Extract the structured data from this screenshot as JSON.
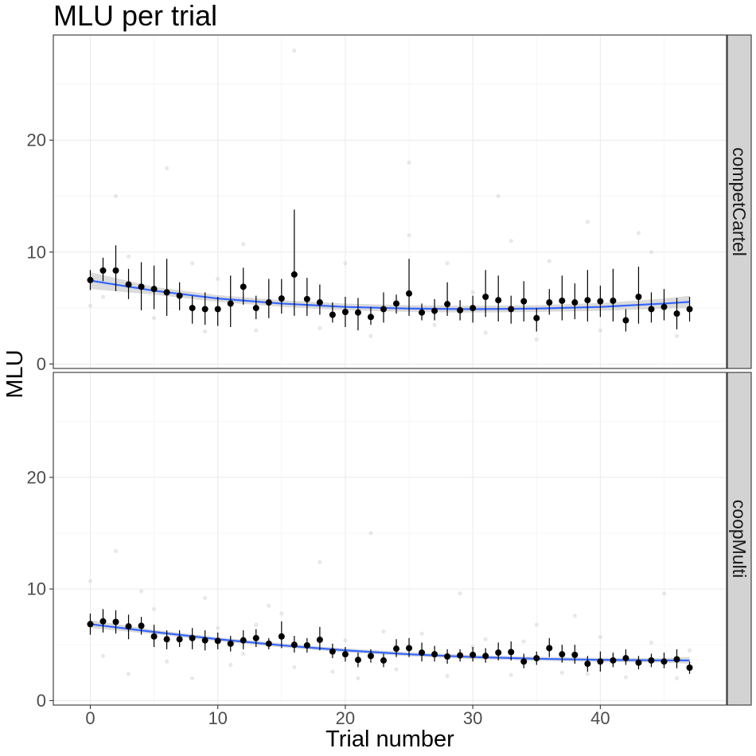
{
  "chart_data": {
    "type": "scatter",
    "title": "MLU per trial",
    "xlabel": "Trial number",
    "ylabel": "MLU",
    "xlim": [
      -2.9,
      49.9
    ],
    "ylim": [
      -0.4,
      29.4
    ],
    "x_ticks": [
      0,
      10,
      20,
      30,
      40
    ],
    "y_ticks": [
      0,
      10,
      20
    ],
    "grid": true,
    "colors": {
      "points": "#000000",
      "smooth_line": "#3366ff",
      "ribbon": "#999999",
      "raw_points": "#cccccc",
      "strip_bg": "#d3d3d3"
    },
    "panels": [
      {
        "strip_label": "competCartel",
        "means": [
          {
            "x": 0,
            "y": 7.5,
            "lo": 6.6,
            "hi": 8.4
          },
          {
            "x": 1,
            "y": 8.35,
            "lo": 7.4,
            "hi": 9.5
          },
          {
            "x": 2,
            "y": 8.35,
            "lo": 6.5,
            "hi": 10.6
          },
          {
            "x": 3,
            "y": 7.1,
            "lo": 5.8,
            "hi": 8.5
          },
          {
            "x": 4,
            "y": 6.9,
            "lo": 4.8,
            "hi": 9.1
          },
          {
            "x": 5,
            "y": 6.7,
            "lo": 4.9,
            "hi": 8.8
          },
          {
            "x": 6,
            "y": 6.4,
            "lo": 4.3,
            "hi": 9.4
          },
          {
            "x": 7,
            "y": 6.1,
            "lo": 4.8,
            "hi": 7.3
          },
          {
            "x": 8,
            "y": 5.0,
            "lo": 3.6,
            "hi": 6.1
          },
          {
            "x": 9,
            "y": 4.9,
            "lo": 3.5,
            "hi": 6.4
          },
          {
            "x": 10,
            "y": 4.9,
            "lo": 3.4,
            "hi": 6.0
          },
          {
            "x": 11,
            "y": 5.4,
            "lo": 3.3,
            "hi": 7.9
          },
          {
            "x": 12,
            "y": 6.9,
            "lo": 5.3,
            "hi": 8.6
          },
          {
            "x": 13,
            "y": 5.0,
            "lo": 4.0,
            "hi": 6.1
          },
          {
            "x": 14,
            "y": 5.5,
            "lo": 4.1,
            "hi": 7.6
          },
          {
            "x": 15,
            "y": 5.85,
            "lo": 4.5,
            "hi": 7.6
          },
          {
            "x": 16,
            "y": 8.0,
            "lo": 4.3,
            "hi": 13.8
          },
          {
            "x": 17,
            "y": 5.8,
            "lo": 4.3,
            "hi": 7.7
          },
          {
            "x": 18,
            "y": 5.5,
            "lo": 4.4,
            "hi": 7.1
          },
          {
            "x": 19,
            "y": 4.4,
            "lo": 3.7,
            "hi": 5.5
          },
          {
            "x": 20,
            "y": 4.65,
            "lo": 3.3,
            "hi": 6.0
          },
          {
            "x": 21,
            "y": 4.6,
            "lo": 3.0,
            "hi": 5.9
          },
          {
            "x": 22,
            "y": 4.2,
            "lo": 3.5,
            "hi": 5.1
          },
          {
            "x": 23,
            "y": 4.9,
            "lo": 3.7,
            "hi": 6.4
          },
          {
            "x": 24,
            "y": 5.4,
            "lo": 4.5,
            "hi": 6.2
          },
          {
            "x": 25,
            "y": 6.3,
            "lo": 4.3,
            "hi": 9.4
          },
          {
            "x": 26,
            "y": 4.6,
            "lo": 3.9,
            "hi": 5.4
          },
          {
            "x": 27,
            "y": 4.75,
            "lo": 3.9,
            "hi": 5.8
          },
          {
            "x": 28,
            "y": 5.35,
            "lo": 4.3,
            "hi": 7.3
          },
          {
            "x": 29,
            "y": 4.8,
            "lo": 3.9,
            "hi": 5.7
          },
          {
            "x": 30,
            "y": 5.0,
            "lo": 3.7,
            "hi": 6.1
          },
          {
            "x": 31,
            "y": 6.0,
            "lo": 4.2,
            "hi": 8.4
          },
          {
            "x": 32,
            "y": 5.7,
            "lo": 3.8,
            "hi": 7.9
          },
          {
            "x": 33,
            "y": 4.9,
            "lo": 3.6,
            "hi": 6.1
          },
          {
            "x": 34,
            "y": 5.6,
            "lo": 3.8,
            "hi": 7.4
          },
          {
            "x": 35,
            "y": 4.1,
            "lo": 2.9,
            "hi": 5.0
          },
          {
            "x": 36,
            "y": 5.5,
            "lo": 4.4,
            "hi": 6.7
          },
          {
            "x": 37,
            "y": 5.65,
            "lo": 3.9,
            "hi": 7.9
          },
          {
            "x": 38,
            "y": 5.5,
            "lo": 4.0,
            "hi": 7.2
          },
          {
            "x": 39,
            "y": 5.7,
            "lo": 3.8,
            "hi": 8.4
          },
          {
            "x": 40,
            "y": 5.6,
            "lo": 4.2,
            "hi": 7.0
          },
          {
            "x": 41,
            "y": 5.65,
            "lo": 3.8,
            "hi": 8.5
          },
          {
            "x": 42,
            "y": 3.9,
            "lo": 2.9,
            "hi": 4.9
          },
          {
            "x": 43,
            "y": 6.0,
            "lo": 3.6,
            "hi": 8.7
          },
          {
            "x": 44,
            "y": 4.9,
            "lo": 3.7,
            "hi": 6.4
          },
          {
            "x": 45,
            "y": 5.1,
            "lo": 3.9,
            "hi": 6.7
          },
          {
            "x": 46,
            "y": 4.5,
            "lo": 3.1,
            "hi": 5.9
          },
          {
            "x": 47,
            "y": 4.9,
            "lo": 3.8,
            "hi": 6.0
          }
        ],
        "smooth": [
          {
            "x": 0,
            "y": 7.45
          },
          {
            "x": 5,
            "y": 6.55
          },
          {
            "x": 10,
            "y": 5.85
          },
          {
            "x": 15,
            "y": 5.4
          },
          {
            "x": 20,
            "y": 5.1
          },
          {
            "x": 25,
            "y": 4.95
          },
          {
            "x": 30,
            "y": 4.9
          },
          {
            "x": 35,
            "y": 4.95
          },
          {
            "x": 40,
            "y": 5.1
          },
          {
            "x": 45,
            "y": 5.4
          },
          {
            "x": 47,
            "y": 5.55
          }
        ],
        "ribbon_halfwidth": [
          0.75,
          0.35,
          0.3,
          0.3,
          0.3,
          0.3,
          0.3,
          0.3,
          0.35,
          0.45,
          0.55
        ],
        "raw_points": [
          {
            "x": 16,
            "y": 28.0
          },
          {
            "x": 6,
            "y": 17.5
          },
          {
            "x": 25,
            "y": 18.0
          },
          {
            "x": 2,
            "y": 15.0
          },
          {
            "x": 32,
            "y": 15.0
          },
          {
            "x": 39,
            "y": 12.7
          },
          {
            "x": 12,
            "y": 10.7
          },
          {
            "x": 25,
            "y": 11.5
          },
          {
            "x": 33,
            "y": 11.0
          },
          {
            "x": 43,
            "y": 11.7
          },
          {
            "x": 3,
            "y": 9.6
          },
          {
            "x": 8,
            "y": 9.0
          },
          {
            "x": 20,
            "y": 9.0
          },
          {
            "x": 28,
            "y": 9.0
          },
          {
            "x": 36,
            "y": 9.2
          },
          {
            "x": 44,
            "y": 10.0
          },
          {
            "x": 1,
            "y": 6.0
          },
          {
            "x": 5,
            "y": 4.1
          },
          {
            "x": 9,
            "y": 2.9
          },
          {
            "x": 13,
            "y": 3.0
          },
          {
            "x": 18,
            "y": 3.2
          },
          {
            "x": 22,
            "y": 2.5
          },
          {
            "x": 27,
            "y": 3.5
          },
          {
            "x": 31,
            "y": 2.8
          },
          {
            "x": 35,
            "y": 2.2
          },
          {
            "x": 40,
            "y": 3.0
          },
          {
            "x": 46,
            "y": 2.5
          },
          {
            "x": 0,
            "y": 5.2
          },
          {
            "x": 10,
            "y": 7.6
          },
          {
            "x": 30,
            "y": 6.4
          }
        ]
      },
      {
        "strip_label": "coopMulti",
        "means": [
          {
            "x": 0,
            "y": 6.85,
            "lo": 5.9,
            "hi": 7.8
          },
          {
            "x": 1,
            "y": 7.1,
            "lo": 6.1,
            "hi": 8.2
          },
          {
            "x": 2,
            "y": 7.05,
            "lo": 6.0,
            "hi": 8.1
          },
          {
            "x": 3,
            "y": 6.65,
            "lo": 5.5,
            "hi": 7.7
          },
          {
            "x": 4,
            "y": 6.7,
            "lo": 5.9,
            "hi": 7.5
          },
          {
            "x": 5,
            "y": 5.75,
            "lo": 4.8,
            "hi": 6.8
          },
          {
            "x": 6,
            "y": 5.5,
            "lo": 4.6,
            "hi": 6.3
          },
          {
            "x": 7,
            "y": 5.5,
            "lo": 4.8,
            "hi": 6.3
          },
          {
            "x": 8,
            "y": 5.6,
            "lo": 4.6,
            "hi": 6.5
          },
          {
            "x": 9,
            "y": 5.4,
            "lo": 4.5,
            "hi": 6.3
          },
          {
            "x": 10,
            "y": 5.35,
            "lo": 4.6,
            "hi": 6.1
          },
          {
            "x": 11,
            "y": 5.1,
            "lo": 4.4,
            "hi": 5.8
          },
          {
            "x": 12,
            "y": 5.4,
            "lo": 4.6,
            "hi": 6.3
          },
          {
            "x": 13,
            "y": 5.6,
            "lo": 4.8,
            "hi": 6.4
          },
          {
            "x": 14,
            "y": 5.1,
            "lo": 4.6,
            "hi": 5.6
          },
          {
            "x": 15,
            "y": 5.75,
            "lo": 4.7,
            "hi": 7.1
          },
          {
            "x": 16,
            "y": 5.0,
            "lo": 4.3,
            "hi": 5.8
          },
          {
            "x": 17,
            "y": 4.95,
            "lo": 4.3,
            "hi": 5.6
          },
          {
            "x": 18,
            "y": 5.45,
            "lo": 4.5,
            "hi": 6.6
          },
          {
            "x": 19,
            "y": 4.4,
            "lo": 3.8,
            "hi": 5.1
          },
          {
            "x": 20,
            "y": 4.15,
            "lo": 3.5,
            "hi": 4.8
          },
          {
            "x": 21,
            "y": 3.65,
            "lo": 3.0,
            "hi": 4.3
          },
          {
            "x": 22,
            "y": 4.0,
            "lo": 3.4,
            "hi": 4.6
          },
          {
            "x": 23,
            "y": 3.6,
            "lo": 3.0,
            "hi": 4.2
          },
          {
            "x": 24,
            "y": 4.65,
            "lo": 3.9,
            "hi": 5.5
          },
          {
            "x": 25,
            "y": 4.7,
            "lo": 3.9,
            "hi": 5.6
          },
          {
            "x": 26,
            "y": 4.3,
            "lo": 3.5,
            "hi": 5.2
          },
          {
            "x": 27,
            "y": 4.15,
            "lo": 3.5,
            "hi": 4.9
          },
          {
            "x": 28,
            "y": 3.95,
            "lo": 3.3,
            "hi": 4.6
          },
          {
            "x": 29,
            "y": 4.05,
            "lo": 3.5,
            "hi": 4.6
          },
          {
            "x": 30,
            "y": 4.1,
            "lo": 3.5,
            "hi": 4.8
          },
          {
            "x": 31,
            "y": 4.0,
            "lo": 3.4,
            "hi": 4.7
          },
          {
            "x": 32,
            "y": 4.3,
            "lo": 3.6,
            "hi": 5.2
          },
          {
            "x": 33,
            "y": 4.35,
            "lo": 3.6,
            "hi": 5.3
          },
          {
            "x": 34,
            "y": 3.5,
            "lo": 2.9,
            "hi": 4.2
          },
          {
            "x": 35,
            "y": 3.8,
            "lo": 3.2,
            "hi": 4.4
          },
          {
            "x": 36,
            "y": 4.7,
            "lo": 3.9,
            "hi": 5.6
          },
          {
            "x": 37,
            "y": 4.15,
            "lo": 3.4,
            "hi": 5.0
          },
          {
            "x": 38,
            "y": 4.1,
            "lo": 3.3,
            "hi": 5.0
          },
          {
            "x": 39,
            "y": 3.3,
            "lo": 2.6,
            "hi": 4.0
          },
          {
            "x": 40,
            "y": 3.5,
            "lo": 2.6,
            "hi": 4.4
          },
          {
            "x": 41,
            "y": 3.6,
            "lo": 3.0,
            "hi": 4.3
          },
          {
            "x": 42,
            "y": 3.8,
            "lo": 3.2,
            "hi": 4.6
          },
          {
            "x": 43,
            "y": 3.4,
            "lo": 2.8,
            "hi": 4.0
          },
          {
            "x": 44,
            "y": 3.6,
            "lo": 3.0,
            "hi": 4.2
          },
          {
            "x": 45,
            "y": 3.5,
            "lo": 2.9,
            "hi": 4.3
          },
          {
            "x": 46,
            "y": 3.7,
            "lo": 2.9,
            "hi": 4.6
          },
          {
            "x": 47,
            "y": 2.95,
            "lo": 2.4,
            "hi": 3.5
          }
        ],
        "smooth": [
          {
            "x": 0,
            "y": 6.85
          },
          {
            "x": 5,
            "y": 6.15
          },
          {
            "x": 10,
            "y": 5.5
          },
          {
            "x": 15,
            "y": 4.95
          },
          {
            "x": 20,
            "y": 4.5
          },
          {
            "x": 25,
            "y": 4.15
          },
          {
            "x": 30,
            "y": 3.9
          },
          {
            "x": 35,
            "y": 3.75
          },
          {
            "x": 40,
            "y": 3.65
          },
          {
            "x": 45,
            "y": 3.6
          },
          {
            "x": 47,
            "y": 3.6
          }
        ],
        "ribbon_halfwidth": [
          0.35,
          0.2,
          0.18,
          0.18,
          0.18,
          0.18,
          0.18,
          0.18,
          0.18,
          0.2,
          0.3
        ],
        "raw_points": [
          {
            "x": 22,
            "y": 15.0
          },
          {
            "x": 2,
            "y": 13.4
          },
          {
            "x": 0,
            "y": 10.7
          },
          {
            "x": 4,
            "y": 9.8
          },
          {
            "x": 18,
            "y": 12.4
          },
          {
            "x": 9,
            "y": 9.2
          },
          {
            "x": 29,
            "y": 9.6
          },
          {
            "x": 14,
            "y": 8.5
          },
          {
            "x": 38,
            "y": 7.6
          },
          {
            "x": 45,
            "y": 9.6
          },
          {
            "x": 1,
            "y": 4.0
          },
          {
            "x": 3,
            "y": 2.4
          },
          {
            "x": 6,
            "y": 3.5
          },
          {
            "x": 8,
            "y": 2.0
          },
          {
            "x": 11,
            "y": 3.2
          },
          {
            "x": 13,
            "y": 6.8
          },
          {
            "x": 16,
            "y": 3.0
          },
          {
            "x": 19,
            "y": 2.6
          },
          {
            "x": 21,
            "y": 2.0
          },
          {
            "x": 23,
            "y": 6.2
          },
          {
            "x": 24,
            "y": 2.8
          },
          {
            "x": 26,
            "y": 6.0
          },
          {
            "x": 28,
            "y": 2.2
          },
          {
            "x": 31,
            "y": 5.5
          },
          {
            "x": 33,
            "y": 2.3
          },
          {
            "x": 35,
            "y": 6.8
          },
          {
            "x": 37,
            "y": 2.5
          },
          {
            "x": 40,
            "y": 5.7
          },
          {
            "x": 42,
            "y": 2.1
          },
          {
            "x": 44,
            "y": 5.2
          },
          {
            "x": 46,
            "y": 2.0
          },
          {
            "x": 47,
            "y": 4.5
          },
          {
            "x": 10,
            "y": 6.5
          },
          {
            "x": 15,
            "y": 7.8
          },
          {
            "x": 20,
            "y": 5.4
          },
          {
            "x": 30,
            "y": 4.8
          },
          {
            "x": 34,
            "y": 5.3
          },
          {
            "x": 39,
            "y": 2.4
          },
          {
            "x": 5,
            "y": 8.2
          },
          {
            "x": 12,
            "y": 4.2
          }
        ]
      }
    ]
  }
}
